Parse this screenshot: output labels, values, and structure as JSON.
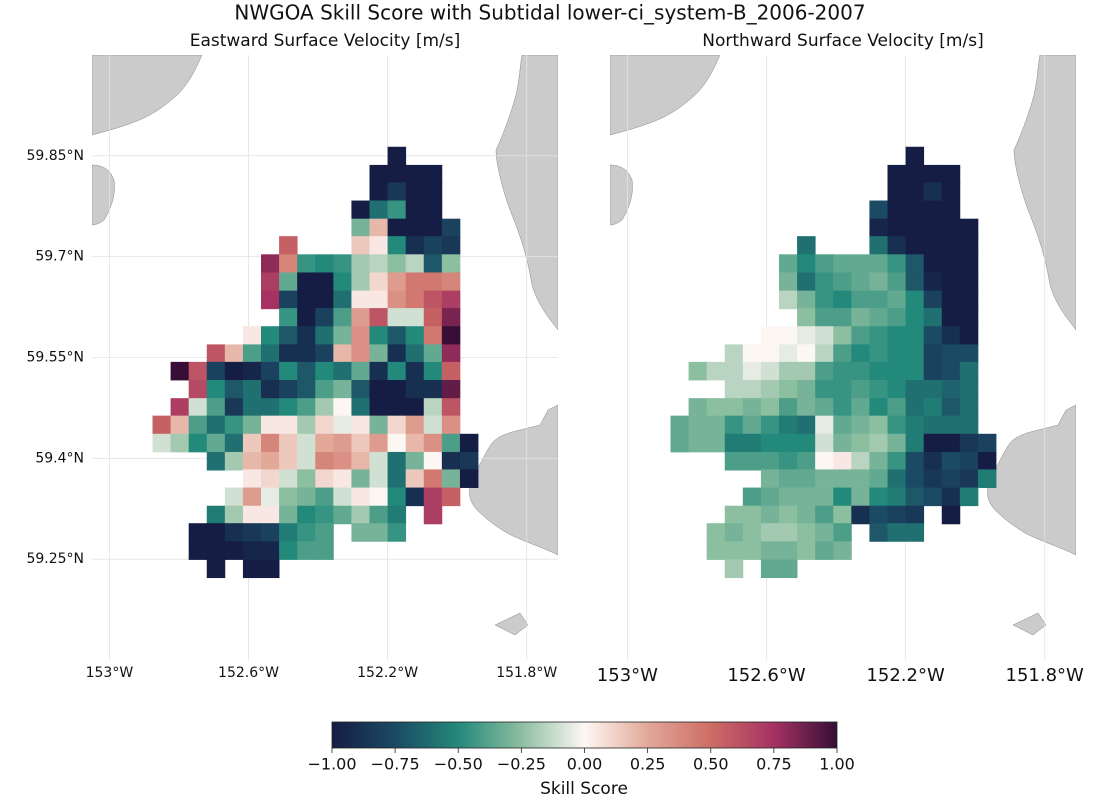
{
  "title": "NWGOA Skill Score with Subtidal lower-ci_system-B_2006-2007",
  "chart_data": [
    {
      "type": "heatmap",
      "title": "Eastward Surface Velocity [m/s]",
      "x": [
        -152.85,
        -152.798,
        -152.746,
        -152.694,
        -152.642,
        -152.59,
        -152.538,
        -152.486,
        -152.434,
        -152.382,
        -152.33,
        -152.278,
        -152.226,
        -152.174,
        -152.122,
        -152.07,
        -152.018,
        -151.966,
        -151.914
      ],
      "y": [
        59.85,
        59.823,
        59.797,
        59.77,
        59.743,
        59.717,
        59.69,
        59.663,
        59.636,
        59.61,
        59.583,
        59.556,
        59.53,
        59.503,
        59.476,
        59.45,
        59.423,
        59.396,
        59.37,
        59.343,
        59.316,
        59.29,
        59.263,
        59.236
      ],
      "values": [
        [
          null,
          null,
          null,
          null,
          null,
          null,
          null,
          null,
          null,
          null,
          null,
          null,
          null,
          -1,
          null,
          null,
          null,
          null,
          null
        ],
        [
          null,
          null,
          null,
          null,
          null,
          null,
          null,
          null,
          null,
          null,
          null,
          null,
          -1,
          -1,
          -1,
          -1,
          null,
          null,
          null
        ],
        [
          null,
          null,
          null,
          null,
          null,
          null,
          null,
          null,
          null,
          null,
          null,
          null,
          -1,
          -0.85,
          -1,
          -1,
          null,
          null,
          null
        ],
        [
          null,
          null,
          null,
          null,
          null,
          null,
          null,
          null,
          null,
          null,
          null,
          -1,
          -0.6,
          -0.45,
          -1,
          -1,
          null,
          null,
          null
        ],
        [
          null,
          null,
          null,
          null,
          null,
          null,
          null,
          null,
          null,
          null,
          null,
          -0.3,
          0.2,
          -1,
          -1,
          -1,
          -0.8,
          null,
          null
        ],
        [
          null,
          null,
          null,
          null,
          null,
          null,
          null,
          0.55,
          null,
          null,
          null,
          0.15,
          0.05,
          -0.5,
          -0.9,
          -0.8,
          -0.85,
          null,
          null
        ],
        [
          null,
          null,
          null,
          null,
          null,
          null,
          0.8,
          0.4,
          -0.45,
          -0.5,
          -0.45,
          -0.2,
          -0.15,
          -0.25,
          -0.15,
          -0.7,
          -0.25,
          null,
          null
        ],
        [
          null,
          null,
          null,
          null,
          null,
          null,
          0.7,
          -0.35,
          -1,
          -1,
          -0.5,
          -0.2,
          0.1,
          0.3,
          0.45,
          0.45,
          0.4,
          null,
          null
        ],
        [
          null,
          null,
          null,
          null,
          null,
          null,
          0.75,
          -0.8,
          -1,
          -1,
          -0.6,
          0.05,
          0.05,
          0.35,
          0.45,
          0.6,
          0.7,
          null,
          null
        ],
        [
          null,
          null,
          null,
          null,
          null,
          null,
          null,
          -0.45,
          -1,
          -0.8,
          -0.4,
          0.3,
          0.6,
          -0.1,
          -0.1,
          0.55,
          0.85,
          null,
          null
        ],
        [
          null,
          null,
          null,
          null,
          null,
          0.05,
          -0.5,
          -0.7,
          -0.9,
          -0.6,
          -0.3,
          0.35,
          -0.5,
          -0.7,
          -0.5,
          0.45,
          1,
          null,
          null
        ],
        [
          null,
          null,
          null,
          0.6,
          0.2,
          -0.4,
          -0.6,
          -0.9,
          -0.9,
          -0.8,
          0.2,
          0.35,
          -0.3,
          -0.9,
          -0.6,
          -0.35,
          0.8,
          null,
          null
        ],
        [
          null,
          1,
          0.6,
          -0.8,
          -1,
          -0.95,
          -0.8,
          -0.5,
          -0.7,
          -0.5,
          -0.6,
          -0.35,
          -0.9,
          -0.5,
          -0.9,
          -0.5,
          0.55,
          null,
          null
        ],
        [
          null,
          null,
          0.65,
          -0.5,
          -0.7,
          -0.6,
          -0.9,
          -0.8,
          -0.7,
          -0.4,
          -0.3,
          -0.7,
          -1,
          -1,
          -0.9,
          -0.9,
          0.9,
          null,
          null
        ],
        [
          null,
          0.7,
          -0.1,
          -0.4,
          -0.85,
          -0.6,
          -0.6,
          -0.5,
          -0.4,
          -0.2,
          0,
          -0.6,
          -1,
          -1,
          -1,
          -0.15,
          0.6,
          null,
          null
        ],
        [
          0.55,
          0.2,
          -0.4,
          -0.6,
          -0.45,
          -0.3,
          0.05,
          0.05,
          -0.2,
          0.1,
          -0.05,
          0.05,
          -0.3,
          0.1,
          0.3,
          -0.1,
          0.35,
          null,
          null
        ],
        [
          -0.1,
          -0.2,
          -0.5,
          -0.35,
          -0.6,
          0.15,
          0.4,
          0.15,
          -0.1,
          0.25,
          0.3,
          0.15,
          0.3,
          0,
          0.2,
          0.35,
          -0.4,
          -1,
          null
        ],
        [
          null,
          null,
          null,
          -0.6,
          -0.2,
          0.2,
          0.25,
          0.15,
          -0.1,
          0.4,
          0.35,
          0.2,
          -0.1,
          -0.6,
          -0.3,
          0,
          -0.9,
          -0.85,
          null
        ],
        [
          null,
          null,
          null,
          null,
          null,
          0.05,
          0.1,
          -0.1,
          -0.25,
          0.1,
          0.05,
          -0.3,
          -0.1,
          -0.6,
          0.15,
          0.45,
          -0.3,
          -1,
          null
        ],
        [
          null,
          null,
          null,
          null,
          -0.1,
          0.3,
          -0.05,
          -0.25,
          -0.3,
          -0.4,
          -0.1,
          0.05,
          0,
          -0.5,
          -0.9,
          0.7,
          0.55,
          null,
          null
        ],
        [
          null,
          null,
          null,
          -0.55,
          -0.2,
          0.05,
          0.05,
          -0.3,
          -0.5,
          -0.45,
          -0.35,
          -0.2,
          -0.4,
          -0.55,
          null,
          0.7,
          null,
          null,
          null
        ],
        [
          null,
          null,
          -1,
          -1,
          -0.9,
          -0.85,
          -0.8,
          -0.55,
          -0.45,
          -0.4,
          null,
          -0.3,
          -0.3,
          -0.45,
          null,
          null,
          null,
          null,
          null
        ],
        [
          null,
          null,
          -1,
          -1,
          -1,
          -0.95,
          -0.95,
          -0.5,
          -0.4,
          -0.4,
          null,
          null,
          null,
          null,
          null,
          null,
          null,
          null,
          null
        ],
        [
          null,
          null,
          null,
          -1,
          null,
          -1,
          -1,
          null,
          null,
          null,
          null,
          null,
          null,
          null,
          null,
          null,
          null,
          null,
          null
        ]
      ],
      "xlim": [
        -153.05,
        -151.71
      ],
      "ylim": [
        59.1,
        60.0
      ],
      "xticks": [
        {
          "value": -153,
          "label": "153°W"
        },
        {
          "value": -152.6,
          "label": "152.6°W"
        },
        {
          "value": -152.2,
          "label": "152.2°W"
        },
        {
          "value": -151.8,
          "label": "151.8°W"
        }
      ],
      "yticks": [
        {
          "value": 59.85,
          "label": "59.85°N"
        },
        {
          "value": 59.7,
          "label": "59.7°N"
        },
        {
          "value": 59.55,
          "label": "59.55°N"
        },
        {
          "value": 59.4,
          "label": "59.4°N"
        },
        {
          "value": 59.25,
          "label": "59.25°N"
        }
      ],
      "grid": true
    },
    {
      "type": "heatmap",
      "title": "Northward Surface Velocity [m/s]",
      "x": [
        -152.85,
        -152.798,
        -152.746,
        -152.694,
        -152.642,
        -152.59,
        -152.538,
        -152.486,
        -152.434,
        -152.382,
        -152.33,
        -152.278,
        -152.226,
        -152.174,
        -152.122,
        -152.07,
        -152.018,
        -151.966,
        -151.914
      ],
      "y": [
        59.85,
        59.823,
        59.797,
        59.77,
        59.743,
        59.717,
        59.69,
        59.663,
        59.636,
        59.61,
        59.583,
        59.556,
        59.53,
        59.503,
        59.476,
        59.45,
        59.423,
        59.396,
        59.37,
        59.343,
        59.316,
        59.29,
        59.263,
        59.236
      ],
      "values": [
        [
          null,
          null,
          null,
          null,
          null,
          null,
          null,
          null,
          null,
          null,
          null,
          null,
          null,
          -1,
          null,
          null,
          null,
          null,
          null
        ],
        [
          null,
          null,
          null,
          null,
          null,
          null,
          null,
          null,
          null,
          null,
          null,
          null,
          -1,
          -1,
          -1,
          -1,
          null,
          null,
          null
        ],
        [
          null,
          null,
          null,
          null,
          null,
          null,
          null,
          null,
          null,
          null,
          null,
          null,
          -1,
          -1,
          -0.9,
          -1,
          null,
          null,
          null
        ],
        [
          null,
          null,
          null,
          null,
          null,
          null,
          null,
          null,
          null,
          null,
          null,
          -0.75,
          -1,
          -1,
          -1,
          -1,
          null,
          null,
          null
        ],
        [
          null,
          null,
          null,
          null,
          null,
          null,
          null,
          null,
          null,
          null,
          null,
          -0.95,
          -1,
          -1,
          -1,
          -1,
          -1,
          null,
          null
        ],
        [
          null,
          null,
          null,
          null,
          null,
          null,
          null,
          -0.6,
          null,
          null,
          null,
          -0.6,
          -0.9,
          -1,
          -1,
          -1,
          -1,
          null,
          null
        ],
        [
          null,
          null,
          null,
          null,
          null,
          null,
          -0.35,
          -0.5,
          -0.4,
          -0.35,
          -0.35,
          -0.35,
          -0.45,
          -0.7,
          -1,
          -1,
          -1,
          null,
          null
        ],
        [
          null,
          null,
          null,
          null,
          null,
          null,
          -0.3,
          -0.6,
          -0.45,
          -0.4,
          -0.35,
          -0.3,
          -0.4,
          -0.7,
          -0.95,
          -1,
          -1,
          null,
          null
        ],
        [
          null,
          null,
          null,
          null,
          null,
          null,
          -0.15,
          -0.3,
          -0.45,
          -0.5,
          -0.4,
          -0.4,
          -0.35,
          -0.5,
          -0.8,
          -1,
          -1,
          null,
          null
        ],
        [
          null,
          null,
          null,
          null,
          null,
          null,
          null,
          -0.25,
          -0.4,
          -0.4,
          -0.3,
          -0.35,
          -0.4,
          -0.5,
          -0.6,
          -1,
          -1,
          null,
          null
        ],
        [
          null,
          null,
          null,
          null,
          null,
          0,
          0,
          -0.05,
          -0.1,
          -0.25,
          -0.4,
          -0.45,
          -0.5,
          -0.5,
          -0.75,
          -0.9,
          -1,
          null,
          null
        ],
        [
          null,
          null,
          null,
          -0.15,
          0,
          0,
          -0.05,
          0,
          -0.15,
          -0.4,
          -0.5,
          -0.45,
          -0.5,
          -0.5,
          -0.8,
          -0.75,
          -0.75,
          null,
          null
        ],
        [
          null,
          -0.25,
          -0.15,
          -0.15,
          -0.05,
          -0.1,
          -0.2,
          -0.2,
          -0.4,
          -0.45,
          -0.45,
          -0.5,
          -0.5,
          -0.5,
          -0.8,
          -0.75,
          -0.6,
          null,
          null
        ],
        [
          null,
          null,
          null,
          -0.15,
          -0.15,
          -0.2,
          -0.25,
          -0.3,
          -0.45,
          -0.45,
          -0.4,
          -0.45,
          -0.5,
          -0.6,
          -0.6,
          -0.65,
          -0.6,
          null,
          null
        ],
        [
          null,
          -0.3,
          -0.25,
          -0.25,
          -0.3,
          -0.25,
          -0.4,
          -0.3,
          -0.35,
          -0.45,
          -0.35,
          -0.5,
          -0.4,
          -0.6,
          -0.55,
          -0.7,
          -0.6,
          null,
          null
        ],
        [
          -0.35,
          -0.3,
          -0.3,
          -0.45,
          -0.35,
          -0.45,
          -0.55,
          -0.6,
          -0.05,
          -0.35,
          -0.3,
          -0.25,
          -0.45,
          -0.55,
          -0.6,
          -0.6,
          -0.6,
          null,
          null
        ],
        [
          -0.35,
          -0.3,
          -0.3,
          -0.55,
          -0.55,
          -0.5,
          -0.5,
          -0.5,
          -0.1,
          -0.3,
          -0.25,
          -0.2,
          -0.3,
          -0.55,
          -1,
          -1,
          -0.85,
          -0.8,
          null
        ],
        [
          null,
          null,
          null,
          -0.4,
          -0.4,
          -0.4,
          -0.45,
          -0.4,
          0,
          0.05,
          -0.15,
          -0.3,
          -0.45,
          -0.75,
          -0.9,
          -0.75,
          -0.8,
          -1,
          null
        ],
        [
          null,
          null,
          null,
          null,
          null,
          -0.3,
          -0.35,
          -0.35,
          -0.3,
          -0.3,
          -0.3,
          -0.35,
          -0.6,
          -0.75,
          -0.85,
          -0.8,
          -0.85,
          -0.55,
          null
        ],
        [
          null,
          null,
          null,
          null,
          -0.4,
          -0.35,
          -0.3,
          -0.3,
          -0.3,
          -0.5,
          -0.3,
          -0.5,
          -0.55,
          -0.7,
          -0.75,
          -0.9,
          -0.55,
          null,
          null
        ],
        [
          null,
          null,
          null,
          -0.25,
          -0.25,
          -0.3,
          -0.25,
          -0.3,
          -0.4,
          -0.25,
          -0.9,
          -0.75,
          -0.8,
          -0.85,
          null,
          -1,
          null,
          null,
          null
        ],
        [
          null,
          null,
          -0.25,
          -0.3,
          -0.25,
          -0.2,
          -0.2,
          -0.25,
          -0.3,
          -0.4,
          null,
          -0.7,
          -0.6,
          -0.6,
          null,
          null,
          null,
          null,
          null
        ],
        [
          null,
          null,
          -0.25,
          -0.25,
          -0.25,
          -0.3,
          -0.3,
          -0.25,
          -0.35,
          -0.3,
          null,
          null,
          null,
          null,
          null,
          null,
          null,
          null,
          null
        ],
        [
          null,
          null,
          null,
          -0.2,
          null,
          -0.35,
          -0.35,
          null,
          null,
          null,
          null,
          null,
          null,
          null,
          null,
          null,
          null,
          null,
          null
        ]
      ],
      "xlim": [
        -153.05,
        -151.71
      ],
      "ylim": [
        59.1,
        60.0
      ],
      "xticks": [
        {
          "value": -153,
          "label": "153°W"
        },
        {
          "value": -152.6,
          "label": "152.6°W"
        },
        {
          "value": -152.2,
          "label": "152.2°W"
        },
        {
          "value": -151.8,
          "label": "151.8°W"
        }
      ],
      "grid": true
    }
  ],
  "colorbar": {
    "label": "Skill Score",
    "lim": [
      -1,
      1
    ],
    "colors": [
      "#151d44",
      "#1b4a64",
      "#23897a",
      "#8cbea0",
      "#fdf7f4",
      "#e2a898",
      "#cd6d66",
      "#a53262",
      "#360e36"
    ],
    "ticks": [
      {
        "value": -1,
        "label": "−1.00"
      },
      {
        "value": -0.75,
        "label": "−0.75"
      },
      {
        "value": -0.5,
        "label": "−0.50"
      },
      {
        "value": -0.25,
        "label": "−0.25"
      },
      {
        "value": 0,
        "label": "0.00"
      },
      {
        "value": 0.25,
        "label": "0.25"
      },
      {
        "value": 0.5,
        "label": "0.50"
      },
      {
        "value": 0.75,
        "label": "0.75"
      },
      {
        "value": 1,
        "label": "1.00"
      }
    ]
  }
}
